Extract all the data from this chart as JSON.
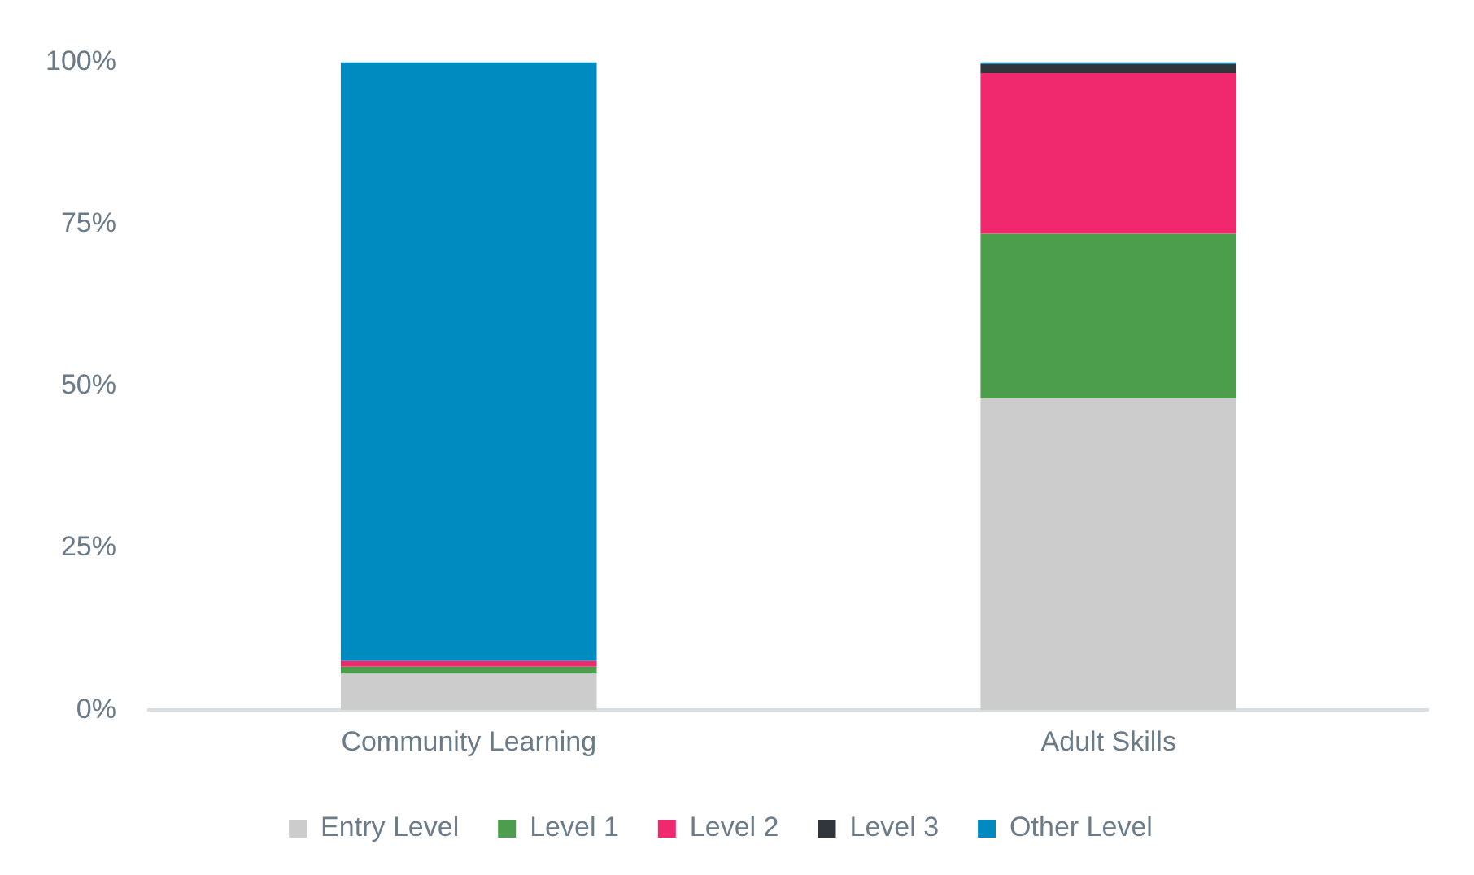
{
  "chart_data": {
    "type": "bar",
    "stacked": true,
    "categories": [
      "Community Learning",
      "Adult Skills"
    ],
    "series": [
      {
        "name": "Entry Level",
        "color": "#cccccc",
        "values": [
          5.6,
          48.1
        ]
      },
      {
        "name": "Level 1",
        "color": "#4c9e4c",
        "values": [
          1.1,
          25.4
        ]
      },
      {
        "name": "Level 2",
        "color": "#f0286e",
        "values": [
          0.9,
          24.8
        ]
      },
      {
        "name": "Level 3",
        "color": "#30363c",
        "values": [
          0,
          1.4
        ]
      },
      {
        "name": "Other Level",
        "color": "#008bc0",
        "values": [
          92.4,
          0.3
        ]
      }
    ],
    "ylim": [
      0,
      100
    ],
    "yticks": [
      {
        "value": 0,
        "label": "0%"
      },
      {
        "value": 25,
        "label": "25%"
      },
      {
        "value": 50,
        "label": "50%"
      },
      {
        "value": 75,
        "label": "75%"
      },
      {
        "value": 100,
        "label": "100%"
      }
    ],
    "grid": false,
    "legend": "bottom"
  }
}
